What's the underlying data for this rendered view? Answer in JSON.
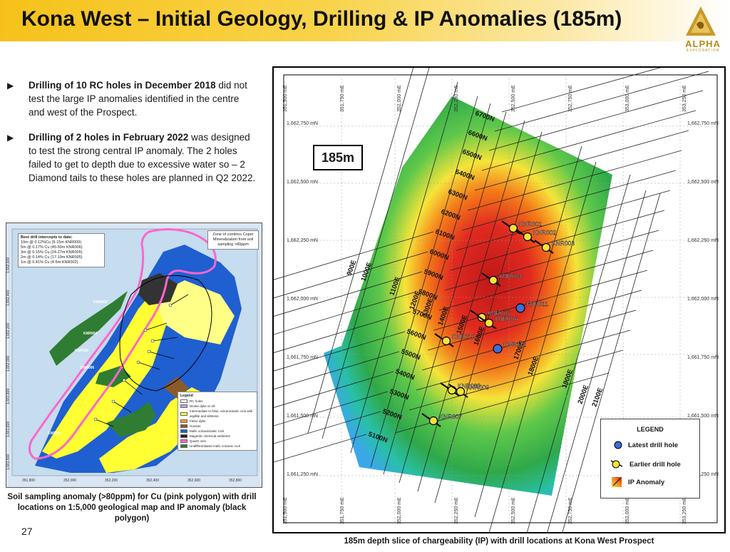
{
  "header": {
    "title": "Kona West – Initial Geology, Drilling & IP Anomalies (185m)",
    "logo_word": "ALPHA",
    "logo_sub": "EXPLORATION"
  },
  "bullets": [
    {
      "bold": "Drilling of 10 RC holes in December 2018",
      "rest": " did not test the large IP anomalies identified in the centre and west of the Prospect."
    },
    {
      "bold": "Drilling of 2 holes in February 2022",
      "rest": " was designed to test the strong central IP anomaly. The 2 holes failed to get to depth due to excessive water so – 2 Diamond tails to these holes are planned in Q2 2022."
    }
  ],
  "geo_map": {
    "intercepts_title": "Best drill intercepts to date:",
    "intercepts": [
      "10m @ 0.12%Cu (5-15m KNR009)",
      "5m @ 0.17% Cu (45-50m KNR006)",
      "3m @ 0.15% Cu (24-27m KNR005)",
      "2m @ 0.14% Cu (17-19m KNR005)",
      "1m @ 0.41% Cu (4-5m KNR002)"
    ],
    "zone_note": "Zone of continos Coper Mineralization from soil sampling >80ppm",
    "legend_title": "Legend",
    "legend_items": [
      {
        "label": "RC holes",
        "color": "#ffffff"
      },
      {
        "label": "Diorite dyke or sill",
        "color": "#c9a0dc"
      },
      {
        "label": "Intermediate to felsic volcaniclastic rock with argillite and siltstone",
        "color": "#ffff33"
      },
      {
        "label": "Felsic dyke",
        "color": "#ff9933"
      },
      {
        "label": "Gossan",
        "color": "#8b5a2b"
      },
      {
        "label": "Mafic volcaniclastic rock",
        "color": "#1f5fd0"
      },
      {
        "label": "Magnetic chemical sediment",
        "color": "#222222"
      },
      {
        "label": "Quartz vein",
        "color": "#ff66cc"
      },
      {
        "label": "Undifferentiated mafic volcanic rock",
        "color": "#2e7d32"
      }
    ],
    "x_ticks": [
      "351,800",
      "352,000",
      "352,200",
      "352,400",
      "352,600",
      "352,800"
    ],
    "y_ticks": [
      "1,662,600",
      "1,662,400",
      "1,662,200",
      "1,662,000",
      "1,661,800",
      "1,661,600",
      "1,661,400"
    ],
    "hole_labels": [
      "KNR003",
      "KNR004",
      "KNR005",
      "KNR006",
      "KNR007"
    ]
  },
  "geo_caption": "Soil sampling anomaly (>80ppm) for Cu (pink polygon) with drill locations on 1:5,000 geological map and IP anomaly (black polygon)",
  "page_number": "27",
  "ip_map": {
    "depth_label": "185m",
    "x_ticks": [
      "351,500 mE",
      "351,750 mE",
      "352,000 mE",
      "352,250 mE",
      "352,500 mE",
      "352,750 mE",
      "353,000 mE",
      "353,250 mE"
    ],
    "y_ticks": [
      "1,662,750 mN",
      "1,662,500 mN",
      "1,662,250 mN",
      "1,662,000 mN",
      "1,661,750 mN",
      "1,661,500 mN",
      "1,661,250 mN"
    ],
    "northing_lines": [
      "6700N",
      "6600N",
      "6500N",
      "6400N",
      "6300N",
      "6200N",
      "6100N",
      "6000N",
      "5900N",
      "5800N",
      "5700N",
      "5600N",
      "5500N",
      "5400N",
      "5300N",
      "5200N",
      "5100N"
    ],
    "easting_lines": [
      "900E",
      "1000E",
      "1100E",
      "1200E",
      "1300E",
      "1400E",
      "1500E",
      "1600E",
      "1700E",
      "1800E",
      "1900E",
      "2000E",
      "2100E"
    ],
    "holes": [
      {
        "id": "KNR001",
        "type": "earlier"
      },
      {
        "id": "KNR002",
        "type": "earlier"
      },
      {
        "id": "KNR003",
        "type": "earlier"
      },
      {
        "id": "KNR004",
        "type": "earlier"
      },
      {
        "id": "KNR005",
        "type": "earlier"
      },
      {
        "id": "KNR006",
        "type": "earlier"
      },
      {
        "id": "KNR010",
        "type": "earlier"
      },
      {
        "id": "KNR011",
        "type": "latest"
      },
      {
        "id": "KNR012",
        "type": "latest"
      },
      {
        "id": "KNR008",
        "type": "earlier"
      },
      {
        "id": "KNR009",
        "type": "earlier"
      },
      {
        "id": "KNR007",
        "type": "earlier"
      }
    ],
    "legend": {
      "title": "LEGEND",
      "latest": "Latest drill hole",
      "earlier": "Earlier drill hole",
      "anomaly": "IP Anomaly"
    },
    "colors": {
      "latest": "#3a6fd8",
      "earlier": "#f5e23a"
    }
  },
  "ip_caption": "185m depth slice of chargeability (IP) with drill locations at Kona West Prospect"
}
